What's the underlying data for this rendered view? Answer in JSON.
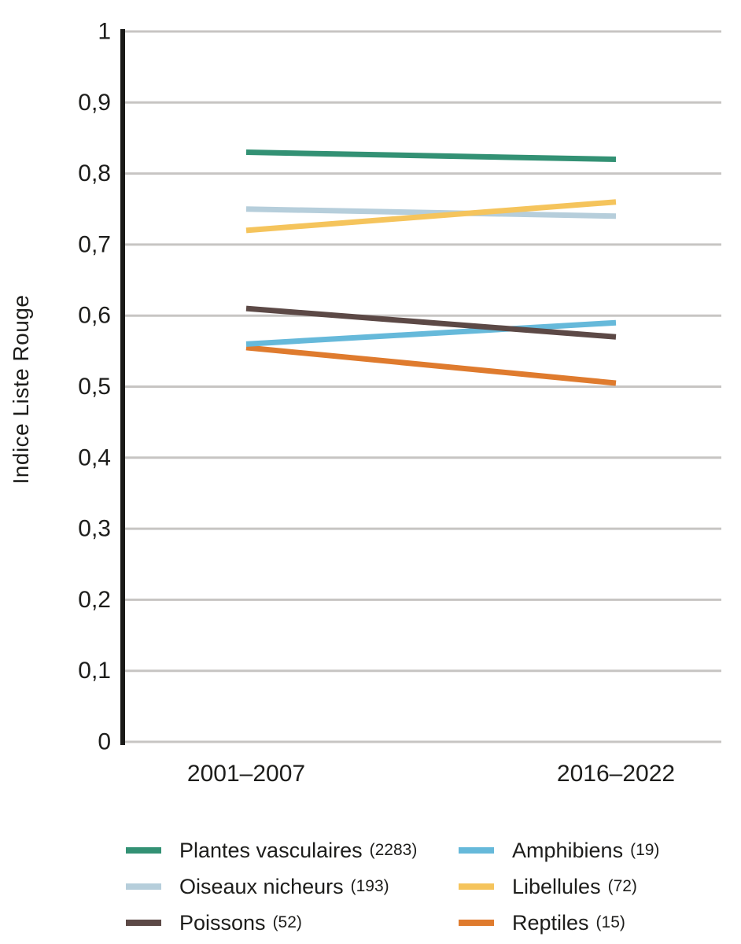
{
  "page": {
    "background": "#ffffff"
  },
  "chart_data": {
    "type": "line",
    "ylabel": "Indice Liste Rouge",
    "x_labels": [
      "2001–2007",
      "2016–2022"
    ],
    "ylim": [
      0,
      1
    ],
    "grid": "horizontal-only",
    "legend_position": "bottom-two-columns",
    "yticks": [
      {
        "value": 1.0,
        "label": "1"
      },
      {
        "value": 0.9,
        "label": "0,9"
      },
      {
        "value": 0.8,
        "label": "0,8"
      },
      {
        "value": 0.7,
        "label": "0,7"
      },
      {
        "value": 0.6,
        "label": "0,6"
      },
      {
        "value": 0.5,
        "label": "0,5"
      },
      {
        "value": 0.4,
        "label": "0,4"
      },
      {
        "value": 0.3,
        "label": "0,3"
      },
      {
        "value": 0.2,
        "label": "0,2"
      },
      {
        "value": 0.1,
        "label": "0,1"
      },
      {
        "value": 0.0,
        "label": "0"
      }
    ],
    "series": [
      {
        "label": "Plantes vasculaires",
        "count_label": "(2283)",
        "color": "#339174",
        "values": [
          0.83,
          0.82
        ]
      },
      {
        "label": "Oiseaux nicheurs",
        "count_label": "(193)",
        "color": "#b6cedb",
        "values": [
          0.75,
          0.74
        ]
      },
      {
        "label": "Poissons",
        "count_label": "(52)",
        "color": "#5c4946",
        "values": [
          0.61,
          0.57
        ]
      },
      {
        "label": "Amphibiens",
        "count_label": "(19)",
        "color": "#66b9da",
        "values": [
          0.56,
          0.59
        ]
      },
      {
        "label": "Libellules",
        "count_label": "(72)",
        "color": "#f5c45c",
        "values": [
          0.72,
          0.76
        ]
      },
      {
        "label": "Reptiles",
        "count_label": "(15)",
        "color": "#df7b2e",
        "values": [
          0.555,
          0.505
        ]
      }
    ],
    "colors": {
      "grid": "#c7c5c3",
      "axis": "#1a1a18",
      "text": "#1d1d1b"
    }
  }
}
